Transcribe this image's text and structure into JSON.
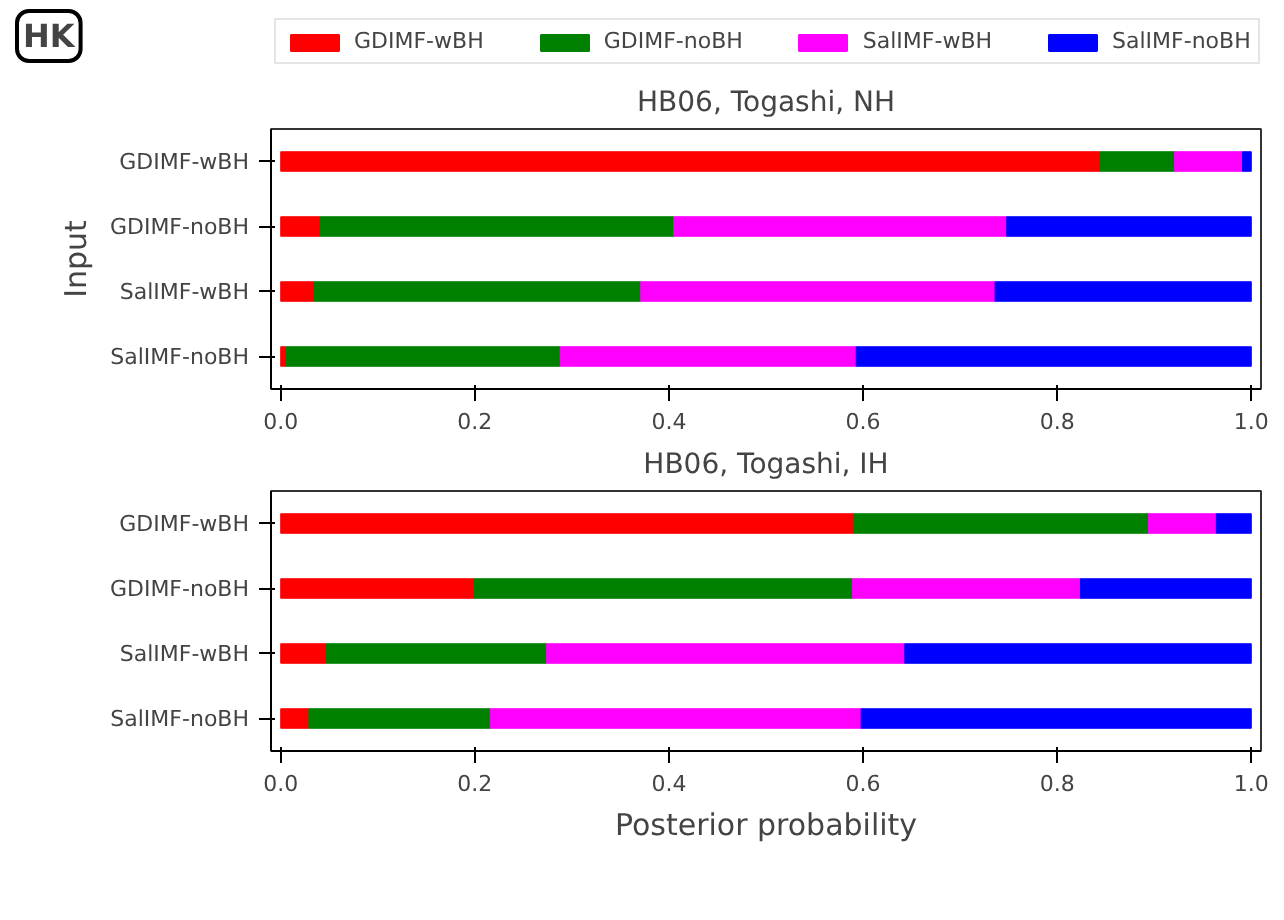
{
  "chart_data": [
    {
      "type": "bar",
      "orientation": "horizontal",
      "stacked": true,
      "title": "HB06, Togashi, NH",
      "ylabel": "Input",
      "annotations": [
        "HK"
      ],
      "legend": "top",
      "grid": false,
      "categories": [
        "GDIMF-wBH",
        "GDIMF-noBH",
        "SalIMF-wBH",
        "SalIMF-noBH"
      ],
      "xlim": [
        -0.01,
        1.01
      ],
      "xticks": [
        {
          "value": 0,
          "label": "0.0"
        },
        {
          "value": 0.2,
          "label": "0.2"
        },
        {
          "value": 0.4,
          "label": "0.4"
        },
        {
          "value": 0.6,
          "label": "0.6"
        },
        {
          "value": 0.8,
          "label": "0.8"
        },
        {
          "value": 1,
          "label": "1.0"
        }
      ],
      "series": [
        {
          "name": "GDIMF-wBH",
          "color": "#ff0000",
          "values": [
            0.844,
            0.04,
            0.034,
            0.005
          ]
        },
        {
          "name": "GDIMF-noBH",
          "color": "#008000",
          "values": [
            0.077,
            0.365,
            0.337,
            0.283
          ]
        },
        {
          "name": "SalIMF-wBH",
          "color": "#ff00ff",
          "values": [
            0.07,
            0.343,
            0.365,
            0.305
          ]
        },
        {
          "name": "SalIMF-noBH",
          "color": "#0000ff",
          "values": [
            0.009,
            0.252,
            0.264,
            0.407
          ]
        }
      ]
    },
    {
      "type": "bar",
      "orientation": "horizontal",
      "stacked": true,
      "title": "HB06, Togashi, IH",
      "xlabel": "Posterior probability",
      "grid": false,
      "categories": [
        "GDIMF-wBH",
        "GDIMF-noBH",
        "SalIMF-wBH",
        "SalIMF-noBH"
      ],
      "xlim": [
        -0.01,
        1.01
      ],
      "xticks": [
        {
          "value": 0,
          "label": "0.0"
        },
        {
          "value": 0.2,
          "label": "0.2"
        },
        {
          "value": 0.4,
          "label": "0.4"
        },
        {
          "value": 0.6,
          "label": "0.6"
        },
        {
          "value": 0.8,
          "label": "0.8"
        },
        {
          "value": 1,
          "label": "1.0"
        }
      ],
      "series": [
        {
          "color": "#ff0000",
          "values": [
            0.59,
            0.199,
            0.047,
            0.029
          ]
        },
        {
          "color": "#008000",
          "values": [
            0.304,
            0.39,
            0.227,
            0.187
          ]
        },
        {
          "color": "#ff00ff",
          "values": [
            0.07,
            0.235,
            0.369,
            0.382
          ]
        },
        {
          "color": "#0000ff",
          "values": [
            0.036,
            0.176,
            0.357,
            0.402
          ]
        }
      ]
    }
  ]
}
